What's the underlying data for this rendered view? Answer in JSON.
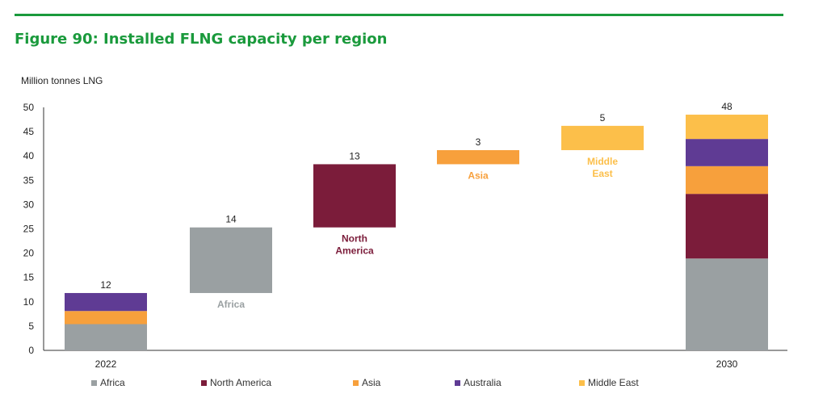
{
  "title": "Figure 90: Installed FLNG capacity per region",
  "chart_data": {
    "type": "bar",
    "subtype": "waterfall-stacked",
    "title": "Figure 90: Installed FLNG capacity per region",
    "ylabel": "Million tonnes LNG",
    "xlabel": "",
    "ylim": [
      0,
      50
    ],
    "yticks": [
      0,
      5,
      10,
      15,
      20,
      25,
      30,
      35,
      40,
      45,
      50
    ],
    "grid": false,
    "legend_position": "bottom",
    "colors": {
      "Africa": "#9aa0a2",
      "North America": "#7b1c3a",
      "Asia": "#f7a03c",
      "Australia": "#5f3b94",
      "Middle East": "#fcbf4a"
    },
    "legend": [
      "Africa",
      "North America",
      "Asia",
      "Australia",
      "Middle East"
    ],
    "stacked_bars": [
      {
        "category": "2022",
        "total_label": "12",
        "segments": [
          {
            "series": "Africa",
            "value": 5.4
          },
          {
            "series": "Asia",
            "value": 2.7
          },
          {
            "series": "Australia",
            "value": 3.7
          }
        ]
      },
      {
        "category": "2030",
        "total_label": "48",
        "segments": [
          {
            "series": "Africa",
            "value": 18.9
          },
          {
            "series": "North America",
            "value": 13.3
          },
          {
            "series": "Asia",
            "value": 5.7
          },
          {
            "series": "Australia",
            "value": 5.6
          },
          {
            "series": "Middle East",
            "value": 5.0
          }
        ]
      }
    ],
    "increments": [
      {
        "series": "Africa",
        "label": "Africa",
        "start": 11.8,
        "end": 25.3,
        "value_label": "14"
      },
      {
        "series": "North America",
        "label": "North America",
        "start": 25.3,
        "end": 38.3,
        "value_label": "13"
      },
      {
        "series": "Asia",
        "label": "Asia",
        "start": 38.3,
        "end": 41.2,
        "value_label": "3"
      },
      {
        "series": "Middle East",
        "label": "Middle East",
        "start": 41.2,
        "end": 46.2,
        "value_label": "5"
      }
    ]
  }
}
